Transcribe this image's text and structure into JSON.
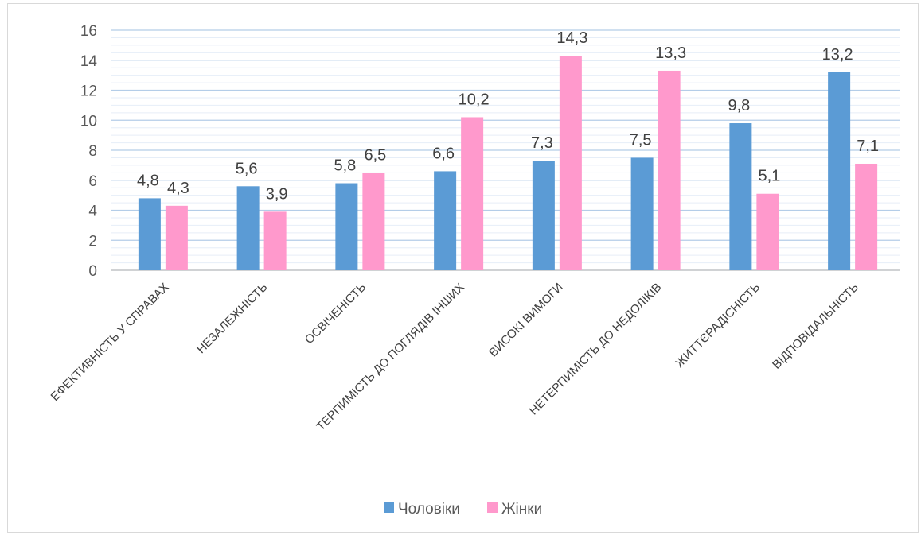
{
  "chart_data": {
    "type": "bar",
    "categories": [
      "ЕФЕКТИВНІСТЬ У СПРАВАХ",
      "НЕЗАЛЕЖНІСТЬ",
      "ОСВІЧЕНІСТЬ",
      "ТЕРПИМІСТЬ ДО ПОГЛЯДІВ ІНШИХ",
      "ВИСОКІ ВИМОГИ",
      "НЕТЕРПИМІСТЬ ДО НЕДОЛІКІВ",
      "ЖИТТЄРАДІСНІСТЬ",
      "ВІДПОВІДАЛЬНІСТЬ"
    ],
    "series": [
      {
        "name": "Чоловіки",
        "color": "#5b9bd5",
        "values": [
          4.8,
          5.6,
          5.8,
          6.6,
          7.3,
          7.5,
          9.8,
          13.2
        ],
        "labels": [
          "4,8",
          "5,6",
          "5,8",
          "6,6",
          "7,3",
          "7,5",
          "9,8",
          "13,2"
        ]
      },
      {
        "name": "Жінки",
        "color": "#ff99cc",
        "values": [
          4.3,
          3.9,
          6.5,
          10.2,
          14.3,
          13.3,
          5.1,
          7.1
        ],
        "labels": [
          "4,3",
          "3,9",
          "6,5",
          "10,2",
          "14,3",
          "13,3",
          "5,1",
          "7,1"
        ]
      }
    ],
    "yticks": [
      "0",
      "2",
      "4",
      "6",
      "8",
      "10",
      "12",
      "14",
      "16"
    ],
    "ylim": [
      0,
      16
    ],
    "grid": true,
    "legend": "bottom"
  }
}
